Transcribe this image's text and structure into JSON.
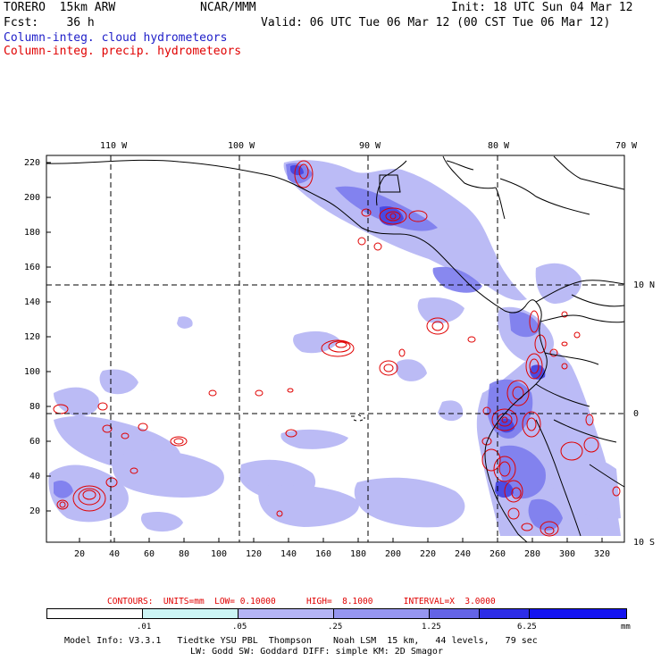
{
  "header": {
    "model": "TORERO  15km ARW",
    "org": "NCAR/MMM",
    "init": "Init: 18 UTC Sun 04 Mar 12",
    "fcst": "Fcst:    36 h",
    "valid": "Valid: 06 UTC Tue 06 Mar 12 (00 CST Tue 06 Mar 12)",
    "field1": "Column-integ. cloud hydrometeors",
    "field2": "Column-integ. precip. hydrometeors",
    "field1_color": "#1e1ec8",
    "field2_color": "#e00000"
  },
  "map": {
    "top_lon_labels": [
      "110 W",
      "100 W",
      "90 W",
      "80 W",
      "70 W"
    ],
    "right_lat_labels": [
      "10 N",
      "0",
      "10 S"
    ],
    "y_grid_labels": [
      "220",
      "200",
      "180",
      "160",
      "140",
      "120",
      "100",
      "80",
      "60",
      "40",
      "20"
    ],
    "x_grid_labels": [
      "20",
      "40",
      "60",
      "80",
      "100",
      "120",
      "140",
      "160",
      "180",
      "200",
      "220",
      "240",
      "260",
      "280",
      "300",
      "320"
    ]
  },
  "contours_line": "CONTOURS:  UNITS=mm  LOW= 0.10000      HIGH=  8.1000      INTERVAL=X  3.0000",
  "colorbar": {
    "labels": [
      ".01",
      ".05",
      ".25",
      "1.25",
      "6.25"
    ],
    "unit": "mm",
    "colors": [
      "#ffffff",
      "#ccf5f5",
      "#b4b4f5",
      "#9696f0",
      "#6464e6",
      "#2d2de6",
      "#1414f0"
    ]
  },
  "footer": {
    "line1": "Model Info: V3.3.1   Tiedtke YSU PBL  Thompson    Noah LSM  15 km,   44 levels,   79 sec",
    "line2": "LW: Godd SW: Goddard DIFF: simple KM: 2D Smagor"
  }
}
